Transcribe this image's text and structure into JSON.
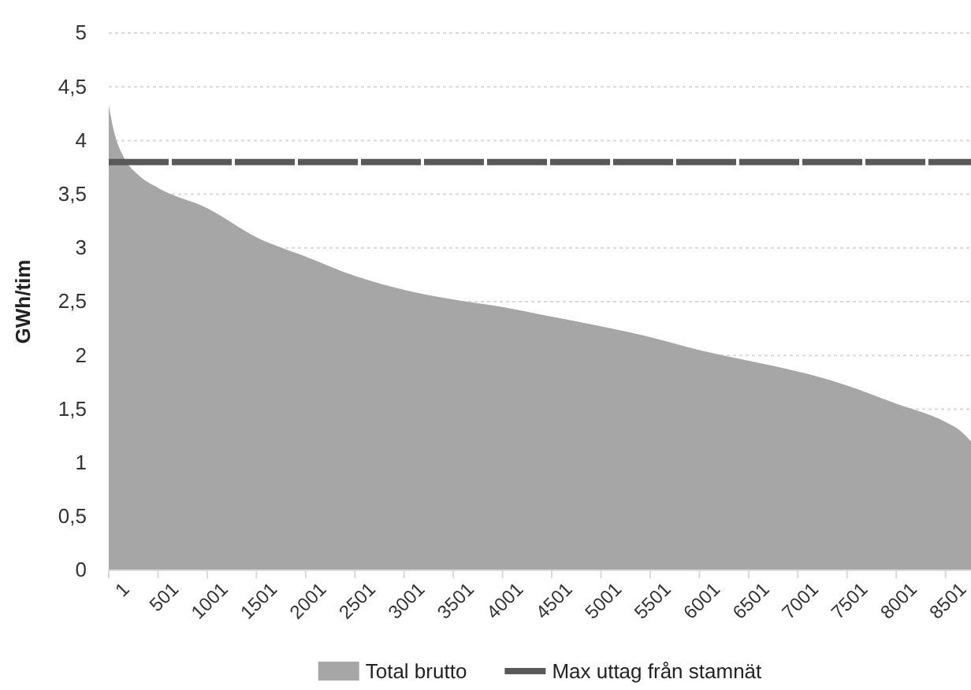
{
  "chart_data": {
    "type": "area",
    "ylabel": "GWh/tim",
    "xlim": [
      1,
      8760
    ],
    "xticks": [
      1,
      501,
      1001,
      1501,
      2001,
      2501,
      3001,
      3501,
      4001,
      4501,
      5001,
      5501,
      6001,
      6501,
      7001,
      7501,
      8001,
      8501
    ],
    "ylim": [
      0,
      5
    ],
    "yticks": [
      {
        "value": 0,
        "label": "0"
      },
      {
        "value": 0.5,
        "label": "0,5"
      },
      {
        "value": 1,
        "label": "1"
      },
      {
        "value": 1.5,
        "label": "1,5"
      },
      {
        "value": 2,
        "label": "2"
      },
      {
        "value": 2.5,
        "label": "2,5"
      },
      {
        "value": 3,
        "label": "3"
      },
      {
        "value": 3.5,
        "label": "3,5"
      },
      {
        "value": 4,
        "label": "4"
      },
      {
        "value": 4.5,
        "label": "4,5"
      },
      {
        "value": 5,
        "label": "5"
      }
    ],
    "grid": "y",
    "legend": "bottom",
    "series": [
      {
        "name": "Total brutto",
        "color": "#a6a6a6",
        "x": [
          1,
          50,
          150,
          300,
          501,
          1001,
          1501,
          2001,
          2501,
          3001,
          3501,
          4001,
          4501,
          5001,
          5501,
          6001,
          6501,
          7001,
          7501,
          8001,
          8501,
          8650,
          8760
        ],
        "values": [
          4.33,
          4.1,
          3.85,
          3.68,
          3.56,
          3.37,
          3.1,
          2.92,
          2.74,
          2.61,
          2.52,
          2.45,
          2.36,
          2.27,
          2.17,
          2.05,
          1.95,
          1.85,
          1.72,
          1.55,
          1.38,
          1.3,
          1.2
        ]
      }
    ],
    "ref_lines": [
      {
        "axis": "y",
        "value": 3.8,
        "label": "Max uttag från stamnät",
        "color": "#595959",
        "line_style": "dashed"
      }
    ]
  }
}
